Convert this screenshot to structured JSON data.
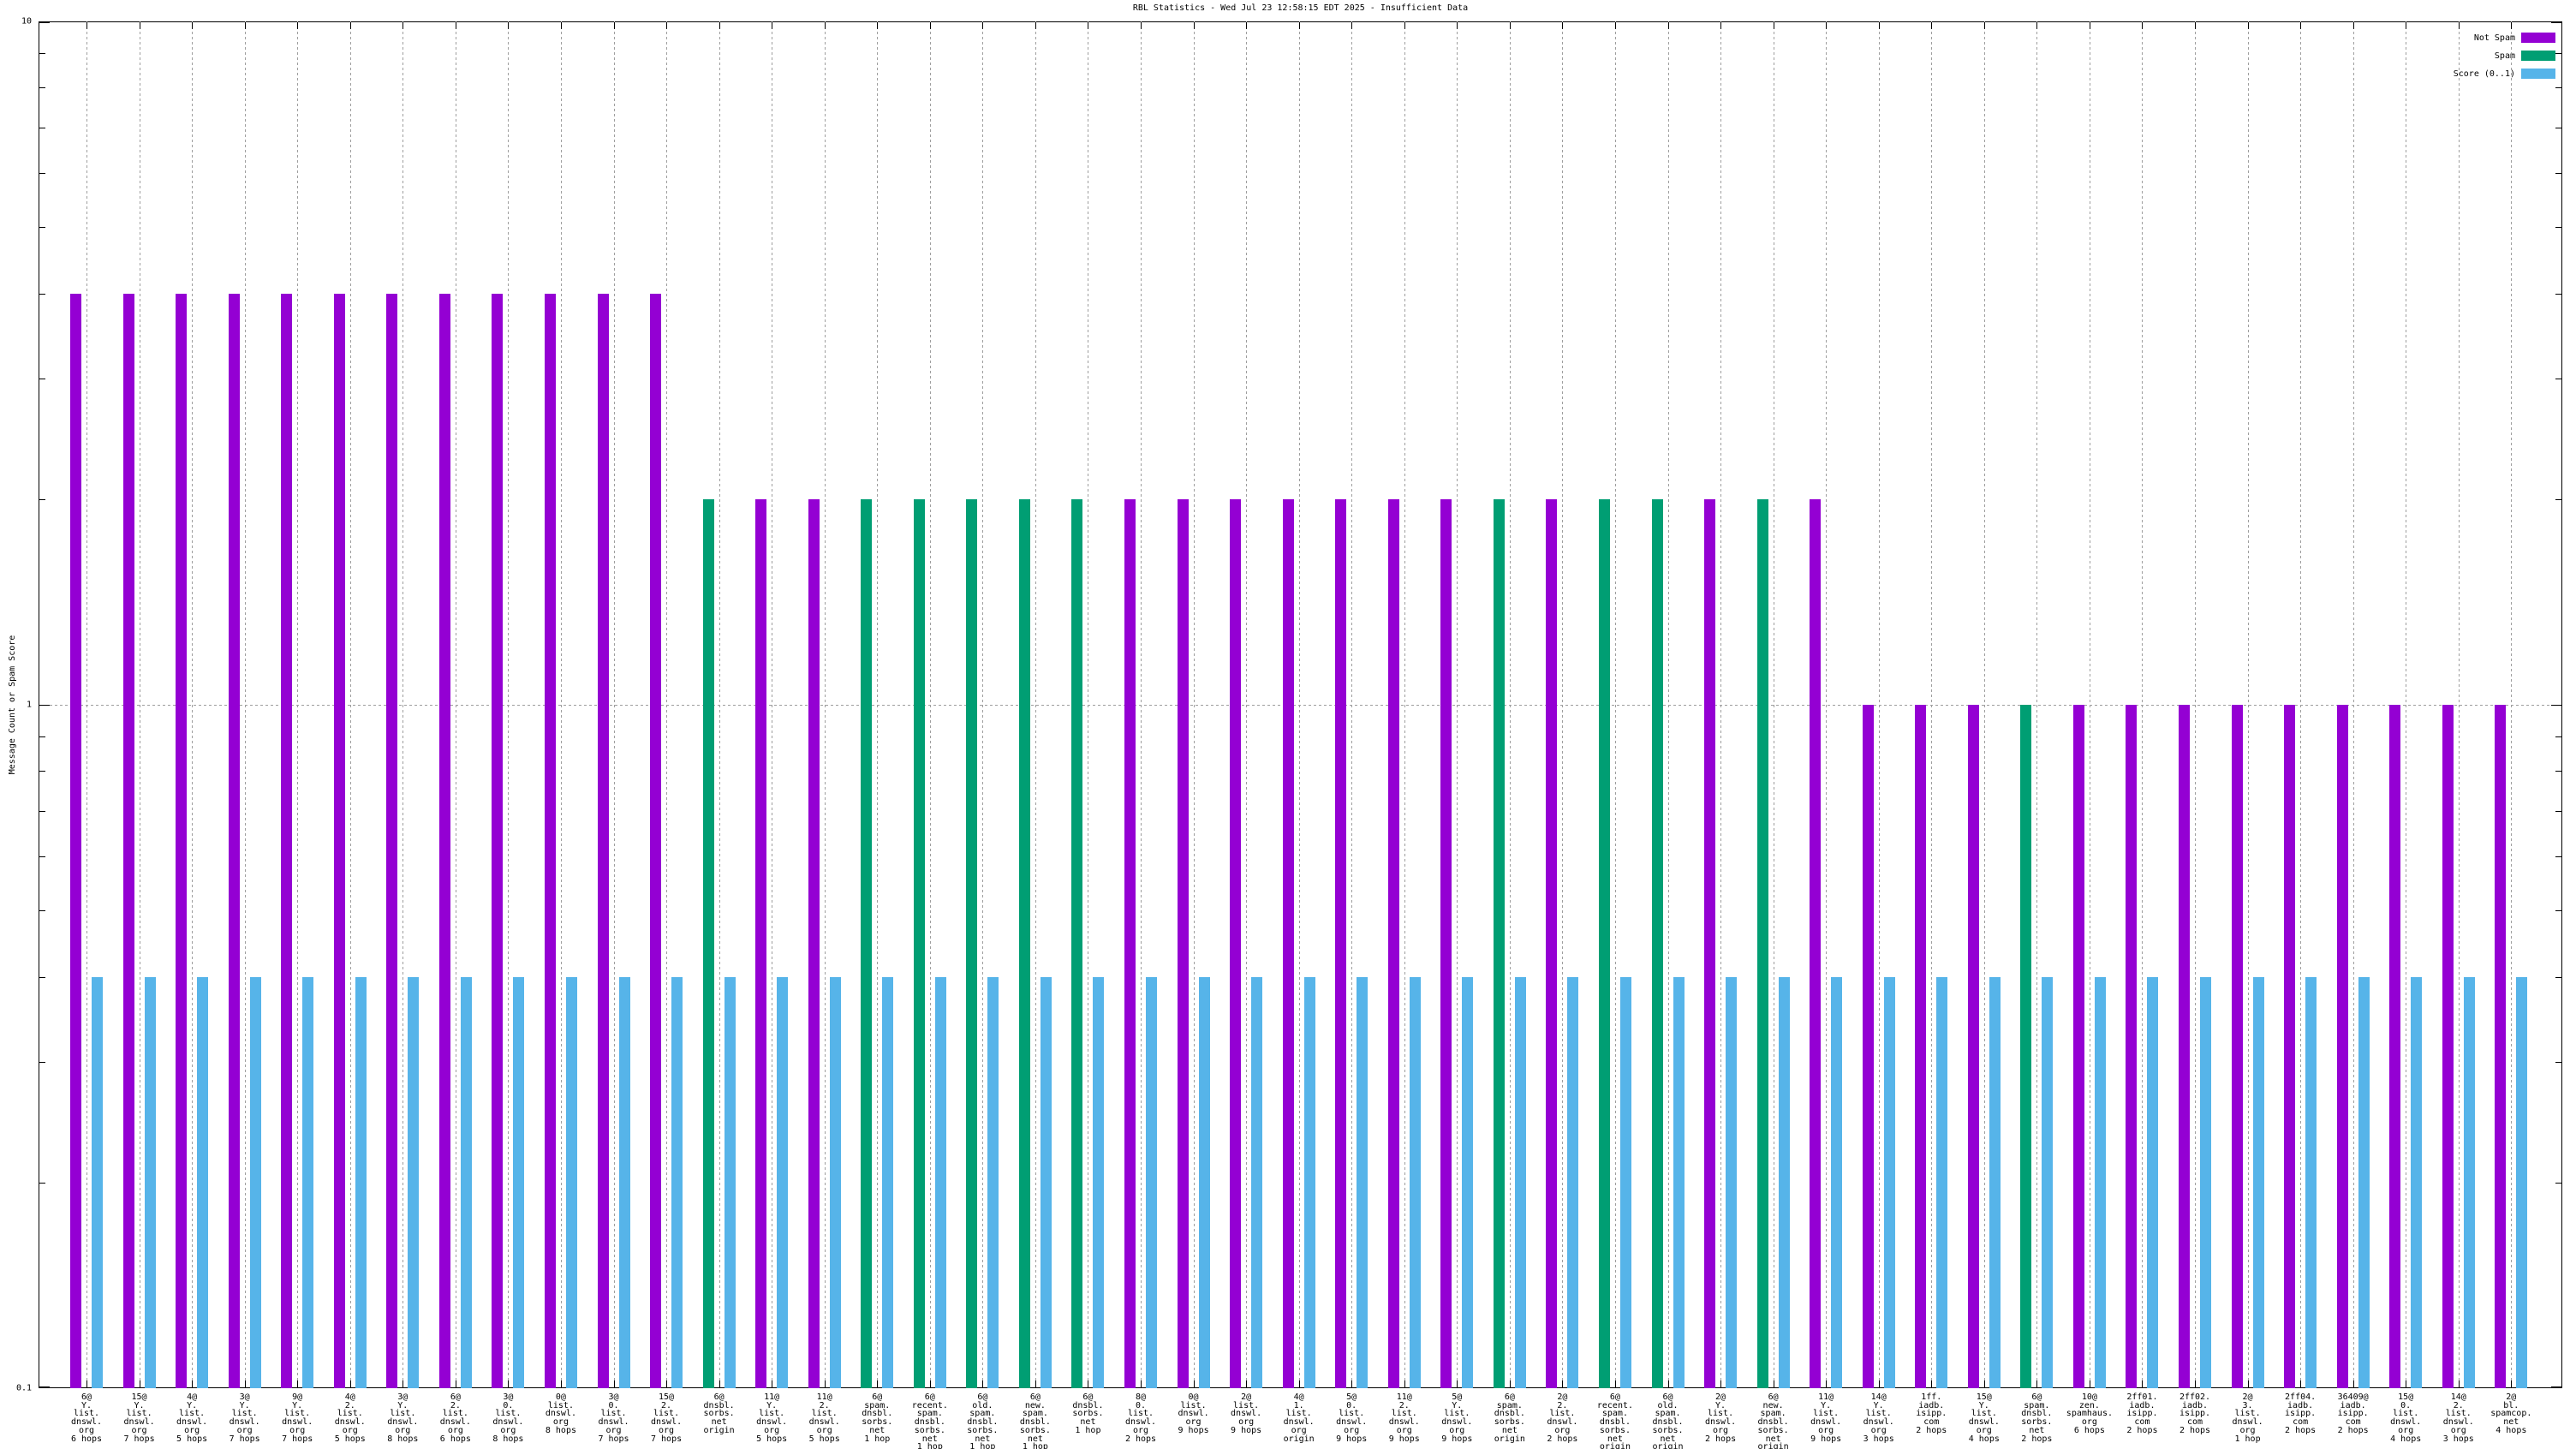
{
  "page": {
    "background": "#ffffff"
  },
  "chart_data": {
    "type": "bar",
    "title": "RBL Statistics - Wed Jul 23 12:58:15 EDT 2025 - Insufficient Data",
    "ylabel": "Message Count or Spam Score",
    "xlabel": "",
    "y_scale": "log",
    "ylim": [
      0.1,
      10
    ],
    "grid": {
      "vertical_dashed_per_group": true,
      "horizontal_line_at_value": 1
    },
    "y_ticks": [
      {
        "label": "10",
        "value": 10
      },
      {
        "label": "1",
        "value": 1
      },
      {
        "label": "0.1",
        "value": 0.1
      }
    ],
    "legend": {
      "position": "top-right",
      "entries": [
        {
          "label": "Not Spam",
          "series": "not_spam",
          "color": "#9400d3"
        },
        {
          "label": "Spam",
          "series": "spam",
          "color": "#009e73"
        },
        {
          "label": "Score (0..1)",
          "series": "score",
          "color": "#56b4e9"
        }
      ]
    },
    "series_colors": {
      "not_spam": "#9400d3",
      "spam": "#009e73",
      "score": "#56b4e9"
    },
    "groups": [
      {
        "label_lines": [
          "6@",
          "Y.",
          "list.",
          "dnswl.",
          "org",
          "6 hops"
        ],
        "count": 4,
        "series": "not_spam",
        "score": 0.4
      },
      {
        "label_lines": [
          "15@",
          "Y.",
          "list.",
          "dnswl.",
          "org",
          "7 hops"
        ],
        "count": 4,
        "series": "not_spam",
        "score": 0.4
      },
      {
        "label_lines": [
          "4@",
          "Y.",
          "list.",
          "dnswl.",
          "org",
          "5 hops"
        ],
        "count": 4,
        "series": "not_spam",
        "score": 0.4
      },
      {
        "label_lines": [
          "3@",
          "Y.",
          "list.",
          "dnswl.",
          "org",
          "7 hops"
        ],
        "count": 4,
        "series": "not_spam",
        "score": 0.4
      },
      {
        "label_lines": [
          "9@",
          "Y.",
          "list.",
          "dnswl.",
          "org",
          "7 hops"
        ],
        "count": 4,
        "series": "not_spam",
        "score": 0.4
      },
      {
        "label_lines": [
          "4@",
          "2.",
          "list.",
          "dnswl.",
          "org",
          "5 hops"
        ],
        "count": 4,
        "series": "not_spam",
        "score": 0.4
      },
      {
        "label_lines": [
          "3@",
          "Y.",
          "list.",
          "dnswl.",
          "org",
          "8 hops"
        ],
        "count": 4,
        "series": "not_spam",
        "score": 0.4
      },
      {
        "label_lines": [
          "6@",
          "2.",
          "list.",
          "dnswl.",
          "org",
          "6 hops"
        ],
        "count": 4,
        "series": "not_spam",
        "score": 0.4
      },
      {
        "label_lines": [
          "3@",
          "0.",
          "list.",
          "dnswl.",
          "org",
          "8 hops"
        ],
        "count": 4,
        "series": "not_spam",
        "score": 0.4
      },
      {
        "label_lines": [
          "0@",
          "list.",
          "dnswl.",
          "org",
          "8 hops"
        ],
        "count": 4,
        "series": "not_spam",
        "score": 0.4
      },
      {
        "label_lines": [
          "3@",
          "0.",
          "list.",
          "dnswl.",
          "org",
          "7 hops"
        ],
        "count": 4,
        "series": "not_spam",
        "score": 0.4
      },
      {
        "label_lines": [
          "15@",
          "2.",
          "list.",
          "dnswl.",
          "org",
          "7 hops"
        ],
        "count": 4,
        "series": "not_spam",
        "score": 0.4
      },
      {
        "label_lines": [
          "6@",
          "dnsbl.",
          "sorbs.",
          "net",
          "origin"
        ],
        "count": 2,
        "series": "spam",
        "score": 0.4
      },
      {
        "label_lines": [
          "11@",
          "Y.",
          "list.",
          "dnswl.",
          "org",
          "5 hops"
        ],
        "count": 2,
        "series": "not_spam",
        "score": 0.4
      },
      {
        "label_lines": [
          "11@",
          "2.",
          "list.",
          "dnswl.",
          "org",
          "5 hops"
        ],
        "count": 2,
        "series": "not_spam",
        "score": 0.4
      },
      {
        "label_lines": [
          "6@",
          "spam.",
          "dnsbl.",
          "sorbs.",
          "net",
          "1 hop"
        ],
        "count": 2,
        "series": "spam",
        "score": 0.4
      },
      {
        "label_lines": [
          "6@",
          "recent.",
          "spam.",
          "dnsbl.",
          "sorbs.",
          "net",
          "1 hop"
        ],
        "count": 2,
        "series": "spam",
        "score": 0.4
      },
      {
        "label_lines": [
          "6@",
          "old.",
          "spam.",
          "dnsbl.",
          "sorbs.",
          "net",
          "1 hop"
        ],
        "count": 2,
        "series": "spam",
        "score": 0.4
      },
      {
        "label_lines": [
          "6@",
          "new.",
          "spam.",
          "dnsbl.",
          "sorbs.",
          "net",
          "1 hop"
        ],
        "count": 2,
        "series": "spam",
        "score": 0.4
      },
      {
        "label_lines": [
          "6@",
          "dnsbl.",
          "sorbs.",
          "net",
          "1 hop"
        ],
        "count": 2,
        "series": "spam",
        "score": 0.4
      },
      {
        "label_lines": [
          "8@",
          "0.",
          "list.",
          "dnswl.",
          "org",
          "2 hops"
        ],
        "count": 2,
        "series": "not_spam",
        "score": 0.4
      },
      {
        "label_lines": [
          "0@",
          "list.",
          "dnswl.",
          "org",
          "9 hops"
        ],
        "count": 2,
        "series": "not_spam",
        "score": 0.4
      },
      {
        "label_lines": [
          "2@",
          "list.",
          "dnswl.",
          "org",
          "9 hops"
        ],
        "count": 2,
        "series": "not_spam",
        "score": 0.4
      },
      {
        "label_lines": [
          "4@",
          "1.",
          "list.",
          "dnswl.",
          "org",
          "origin"
        ],
        "count": 2,
        "series": "not_spam",
        "score": 0.4
      },
      {
        "label_lines": [
          "5@",
          "0.",
          "list.",
          "dnswl.",
          "org",
          "9 hops"
        ],
        "count": 2,
        "series": "not_spam",
        "score": 0.4
      },
      {
        "label_lines": [
          "11@",
          "2.",
          "list.",
          "dnswl.",
          "org",
          "9 hops"
        ],
        "count": 2,
        "series": "not_spam",
        "score": 0.4
      },
      {
        "label_lines": [
          "5@",
          "Y.",
          "list.",
          "dnswl.",
          "org",
          "9 hops"
        ],
        "count": 2,
        "series": "not_spam",
        "score": 0.4
      },
      {
        "label_lines": [
          "6@",
          "spam.",
          "dnsbl.",
          "sorbs.",
          "net",
          "origin"
        ],
        "count": 2,
        "series": "spam",
        "score": 0.4
      },
      {
        "label_lines": [
          "2@",
          "2.",
          "list.",
          "dnswl.",
          "org",
          "2 hops"
        ],
        "count": 2,
        "series": "not_spam",
        "score": 0.4
      },
      {
        "label_lines": [
          "6@",
          "recent.",
          "spam.",
          "dnsbl.",
          "sorbs.",
          "net",
          "origin"
        ],
        "count": 2,
        "series": "spam",
        "score": 0.4
      },
      {
        "label_lines": [
          "6@",
          "old.",
          "spam.",
          "dnsbl.",
          "sorbs.",
          "net",
          "origin"
        ],
        "count": 2,
        "series": "spam",
        "score": 0.4
      },
      {
        "label_lines": [
          "2@",
          "Y.",
          "list.",
          "dnswl.",
          "org",
          "2 hops"
        ],
        "count": 2,
        "series": "not_spam",
        "score": 0.4
      },
      {
        "label_lines": [
          "6@",
          "new.",
          "spam.",
          "dnsbl.",
          "sorbs.",
          "net",
          "origin"
        ],
        "count": 2,
        "series": "spam",
        "score": 0.4
      },
      {
        "label_lines": [
          "11@",
          "Y.",
          "list.",
          "dnswl.",
          "org",
          "9 hops"
        ],
        "count": 2,
        "series": "not_spam",
        "score": 0.4
      },
      {
        "label_lines": [
          "14@",
          "Y.",
          "list.",
          "dnswl.",
          "org",
          "3 hops"
        ],
        "count": 1,
        "series": "not_spam",
        "score": 0.4
      },
      {
        "label_lines": [
          "1ff.",
          "iadb.",
          "isipp.",
          "com",
          "2 hops"
        ],
        "count": 1,
        "series": "not_spam",
        "score": 0.4
      },
      {
        "label_lines": [
          "15@",
          "Y.",
          "list.",
          "dnswl.",
          "org",
          "4 hops"
        ],
        "count": 1,
        "series": "not_spam",
        "score": 0.4
      },
      {
        "label_lines": [
          "6@",
          "spam.",
          "dnsbl.",
          "sorbs.",
          "net",
          "2 hops"
        ],
        "count": 1,
        "series": "spam",
        "score": 0.4
      },
      {
        "label_lines": [
          "10@",
          "zen.",
          "spamhaus.",
          "org",
          "6 hops"
        ],
        "count": 1,
        "series": "not_spam",
        "score": 0.4
      },
      {
        "label_lines": [
          "2ff01.",
          "iadb.",
          "isipp.",
          "com",
          "2 hops"
        ],
        "count": 1,
        "series": "not_spam",
        "score": 0.4
      },
      {
        "label_lines": [
          "2ff02.",
          "iadb.",
          "isipp.",
          "com",
          "2 hops"
        ],
        "count": 1,
        "series": "not_spam",
        "score": 0.4
      },
      {
        "label_lines": [
          "2@",
          "3.",
          "list.",
          "dnswl.",
          "org",
          "1 hop"
        ],
        "count": 1,
        "series": "not_spam",
        "score": 0.4
      },
      {
        "label_lines": [
          "2ff04.",
          "iadb.",
          "isipp.",
          "com",
          "2 hops"
        ],
        "count": 1,
        "series": "not_spam",
        "score": 0.4
      },
      {
        "label_lines": [
          "36409@",
          "iadb.",
          "isipp.",
          "com",
          "2 hops"
        ],
        "count": 1,
        "series": "not_spam",
        "score": 0.4
      },
      {
        "label_lines": [
          "15@",
          "0.",
          "list.",
          "dnswl.",
          "org",
          "4 hops"
        ],
        "count": 1,
        "series": "not_spam",
        "score": 0.4
      },
      {
        "label_lines": [
          "14@",
          "2.",
          "list.",
          "dnswl.",
          "org",
          "3 hops"
        ],
        "count": 1,
        "series": "not_spam",
        "score": 0.4
      },
      {
        "label_lines": [
          "2@",
          "bl.",
          "spamcop.",
          "net",
          "4 hops"
        ],
        "count": 1,
        "series": "not_spam",
        "score": 0.4
      }
    ]
  }
}
